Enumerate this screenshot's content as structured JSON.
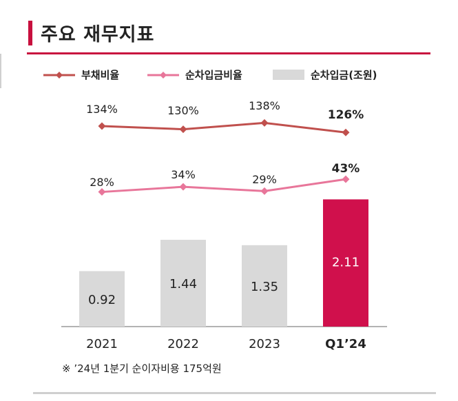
{
  "title": "주요 재무지표",
  "footnote": "※ ’24년 1분기 순이자비용 175억원",
  "colors": {
    "accent": "#c8103e",
    "debt_line": "#c0504d",
    "netdebt_line": "#e8769a",
    "bar_gray": "#d9d9d9",
    "bar_highlight": "#d0104c"
  },
  "chart_data": {
    "type": "bar",
    "categories": [
      "2021",
      "2022",
      "2023",
      "Q1’24"
    ],
    "highlight_index": 3,
    "legend": [
      {
        "key": "debt_ratio",
        "label": "부채비율",
        "marker": "diamond-line"
      },
      {
        "key": "net_debt_ratio",
        "label": "순차입금비율",
        "marker": "diamond-line"
      },
      {
        "key": "net_debt",
        "label": "순차입금(조원)",
        "marker": "box"
      }
    ],
    "series": [
      {
        "key": "net_debt",
        "name": "순차입금(조원)",
        "type": "bar",
        "values": [
          0.92,
          1.44,
          1.35,
          2.11
        ],
        "labels": [
          "0.92",
          "1.44",
          "1.35",
          "2.11"
        ]
      },
      {
        "key": "debt_ratio",
        "name": "부채비율",
        "type": "line",
        "values": [
          134,
          130,
          138,
          126
        ],
        "labels": [
          "134%",
          "130%",
          "138%",
          "126%"
        ]
      },
      {
        "key": "net_debt_ratio",
        "name": "순차입금비율",
        "type": "line",
        "values": [
          28,
          34,
          29,
          43
        ],
        "labels": [
          "28%",
          "34%",
          "29%",
          "43%"
        ]
      }
    ],
    "ylim_bars": [
      0,
      2.4
    ],
    "ylim_debt_ratio": [
      100,
      160
    ],
    "ylim_net_debt_ratio": [
      0,
      110
    ]
  }
}
